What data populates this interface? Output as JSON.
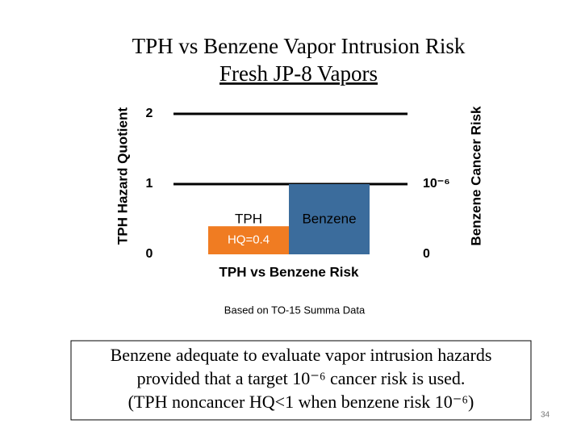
{
  "chart_data": {
    "type": "bar",
    "title": "TPH vs Benzene Vapor Intrusion Risk",
    "subtitle": "Fresh JP-8 Vapors",
    "y_label": "TPH Hazard Quotient",
    "y2_label": "Benzene Cancer Risk",
    "x_label": "TPH vs Benzene Risk",
    "series": [
      {
        "name": "TPH",
        "color": "#f07c22",
        "values": [
          0.4
        ],
        "value_labels": [
          "HQ=0.4"
        ]
      },
      {
        "name": "Benzene",
        "color": "#3b6c9c",
        "axis": "y2",
        "values": [
          1e-06
        ]
      }
    ],
    "ylim": [
      0,
      2
    ],
    "yticks": [
      0,
      1,
      2
    ],
    "y2lim": [
      0,
      2e-06
    ],
    "y2ticks": [
      0,
      {
        "value": 1e-06,
        "label": "10⁻⁶"
      }
    ],
    "grid": true
  },
  "note": "Based on TO-15 Summa Data",
  "callout": [
    "Benzene adequate to evaluate vapor intrusion hazards",
    "provided that a target 10⁻⁶ cancer risk is used.",
    "(TPH noncancer HQ<1 when benzene risk 10⁻⁶)"
  ],
  "page_number": "34"
}
